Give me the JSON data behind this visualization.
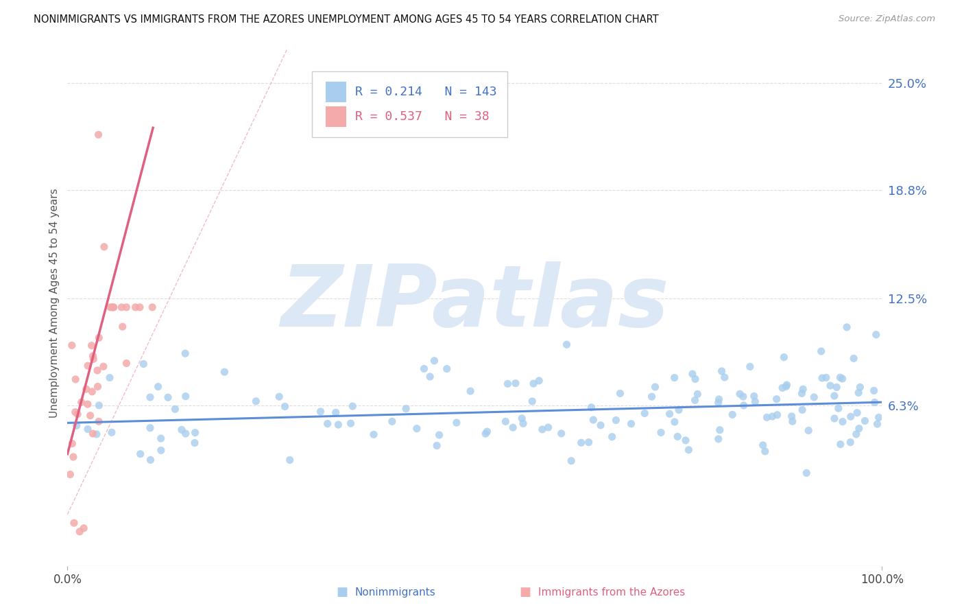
{
  "title": "NONIMMIGRANTS VS IMMIGRANTS FROM THE AZORES UNEMPLOYMENT AMONG AGES 45 TO 54 YEARS CORRELATION CHART",
  "source": "Source: ZipAtlas.com",
  "ylabel": "Unemployment Among Ages 45 to 54 years",
  "ytick_vals": [
    0.063,
    0.125,
    0.188,
    0.25
  ],
  "ytick_labels": [
    "6.3%",
    "12.5%",
    "18.8%",
    "25.0%"
  ],
  "xmin": 0.0,
  "xmax": 1.0,
  "ymin": -0.03,
  "ymax": 0.275,
  "blue_scatter_color": "#A8CDEE",
  "pink_scatter_color": "#F4AAAA",
  "blue_line_color": "#5B8DD9",
  "pink_line_color": "#E06080",
  "diag_line_color": "#F0B0C0",
  "blue_R": "0.214",
  "blue_N": "143",
  "pink_R": "0.537",
  "pink_N": "38",
  "blue_text_color": "#4472C4",
  "pink_text_color": "#E06080",
  "grid_color": "#DDDDDD",
  "watermark": "ZIPatlas",
  "watermark_color": "#DCE8F5",
  "bottom_blue_label": "Nonimmigrants",
  "bottom_pink_label": "Immigrants from the Azores"
}
